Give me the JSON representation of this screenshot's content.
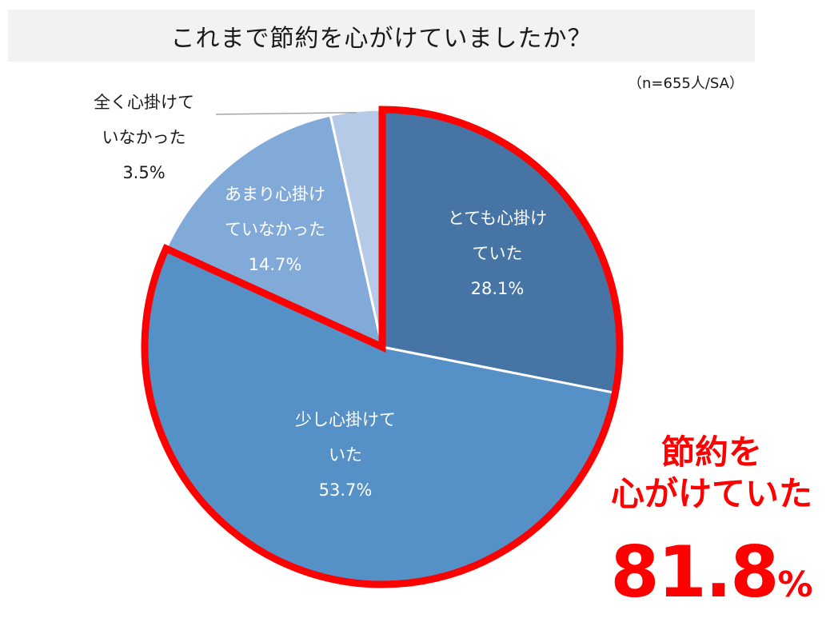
{
  "header": {
    "title": "これまで節約を心がけていましたか？",
    "sample_note": "（n=655人/SA）"
  },
  "chart_data": {
    "type": "pie",
    "title": "これまで節約を心がけていましたか？",
    "note": "（n=655人/SA）",
    "slices": [
      {
        "label_lines": [
          "とても心掛け",
          "ていた"
        ],
        "value": 28.1,
        "value_text": "28.1%",
        "color": "#4674a5",
        "text_color": "#ffffff"
      },
      {
        "label_lines": [
          "少し心掛けて",
          "いた"
        ],
        "value": 53.7,
        "value_text": "53.7%",
        "color": "#5591c7",
        "text_color": "#ffffff"
      },
      {
        "label_lines": [
          "あまり心掛け",
          "ていなかった"
        ],
        "value": 14.7,
        "value_text": "14.7%",
        "color": "#82aad8",
        "text_color": "#ffffff"
      },
      {
        "label_lines": [
          "全く心掛けて",
          "いなかった"
        ],
        "value": 3.5,
        "value_text": "3.5%",
        "color": "#b5cae6",
        "text_color": "#1a1a1a"
      }
    ],
    "highlight_color": "#ff0000"
  },
  "highlight": {
    "line1": "節約を",
    "line2": "心がけていた",
    "value": "81.8",
    "unit": "%"
  }
}
